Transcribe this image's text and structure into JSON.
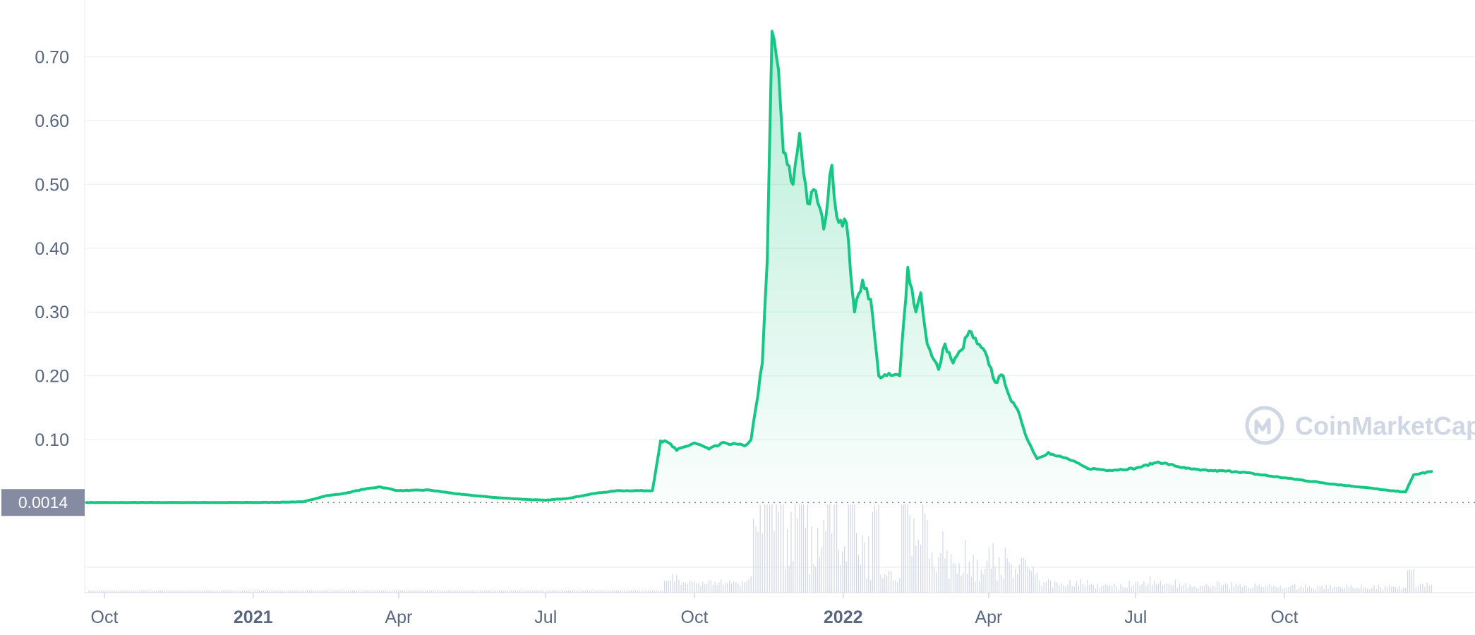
{
  "chart_data": {
    "type": "area",
    "title": "",
    "xlabel": "",
    "ylabel": "",
    "ylim": [
      0,
      0.78
    ],
    "xlim": [
      "2020-09-20",
      "2022-12-31"
    ],
    "y_ticks": [
      "0.70",
      "0.60",
      "0.50",
      "0.40",
      "0.30",
      "0.20",
      "0.10"
    ],
    "y_tick_values": [
      0.7,
      0.6,
      0.5,
      0.4,
      0.3,
      0.2,
      0.1
    ],
    "x_ticks": [
      {
        "label": "Oct",
        "date": "2020-10-01",
        "bold": false
      },
      {
        "label": "2021",
        "date": "2021-01-01",
        "bold": true
      },
      {
        "label": "Apr",
        "date": "2021-04-01",
        "bold": false
      },
      {
        "label": "Jul",
        "date": "2021-07-01",
        "bold": false
      },
      {
        "label": "Oct",
        "date": "2021-10-01",
        "bold": false
      },
      {
        "label": "2022",
        "date": "2022-01-01",
        "bold": true
      },
      {
        "label": "Apr",
        "date": "2022-04-01",
        "bold": false
      },
      {
        "label": "Jul",
        "date": "2022-07-01",
        "bold": false
      },
      {
        "label": "Oct",
        "date": "2022-10-01",
        "bold": false
      }
    ],
    "current_price_label": "0.0014",
    "current_price": 0.0014,
    "grid": true,
    "line_color": "#16c784",
    "series": [
      {
        "x": [
          "2020-09-20",
          "2020-10-15",
          "2020-11-15",
          "2020-12-15",
          "2021-01-10",
          "2021-02-01",
          "2021-02-15",
          "2021-02-25",
          "2021-03-10",
          "2021-03-20",
          "2021-04-01",
          "2021-04-20",
          "2021-05-10",
          "2021-06-01",
          "2021-06-20",
          "2021-07-01",
          "2021-07-15",
          "2021-08-01",
          "2021-08-15",
          "2021-09-05",
          "2021-09-10",
          "2021-09-15",
          "2021-09-20",
          "2021-10-01",
          "2021-10-10",
          "2021-10-20",
          "2021-11-01",
          "2021-11-05",
          "2021-11-08",
          "2021-11-12",
          "2021-11-15",
          "2021-11-18",
          "2021-11-22",
          "2021-11-25",
          "2021-12-01",
          "2021-12-05",
          "2021-12-10",
          "2021-12-15",
          "2021-12-20",
          "2021-12-25",
          "2021-12-28",
          "2022-01-03",
          "2022-01-08",
          "2022-01-13",
          "2022-01-18",
          "2022-01-23",
          "2022-01-28",
          "2022-02-05",
          "2022-02-10",
          "2022-02-15",
          "2022-02-18",
          "2022-02-22",
          "2022-02-25",
          "2022-03-01",
          "2022-03-05",
          "2022-03-10",
          "2022-03-15",
          "2022-03-20",
          "2022-03-25",
          "2022-03-31",
          "2022-04-05",
          "2022-04-10",
          "2022-04-15",
          "2022-04-20",
          "2022-04-25",
          "2022-05-01",
          "2022-05-08",
          "2022-05-12",
          "2022-05-20",
          "2022-06-01",
          "2022-06-15",
          "2022-07-01",
          "2022-07-15",
          "2022-08-01",
          "2022-08-10",
          "2022-09-01",
          "2022-10-01",
          "2022-11-01",
          "2022-11-20",
          "2022-12-05",
          "2022-12-15",
          "2022-12-20",
          "2022-12-31"
        ],
        "values": [
          0.0014,
          0.0014,
          0.0014,
          0.0014,
          0.0016,
          0.0025,
          0.012,
          0.015,
          0.022,
          0.026,
          0.02,
          0.021,
          0.014,
          0.009,
          0.006,
          0.005,
          0.008,
          0.016,
          0.02,
          0.02,
          0.098,
          0.095,
          0.083,
          0.095,
          0.085,
          0.095,
          0.09,
          0.1,
          0.15,
          0.22,
          0.38,
          0.74,
          0.68,
          0.55,
          0.5,
          0.58,
          0.47,
          0.49,
          0.43,
          0.53,
          0.45,
          0.44,
          0.3,
          0.35,
          0.32,
          0.2,
          0.2,
          0.2,
          0.37,
          0.3,
          0.33,
          0.25,
          0.23,
          0.21,
          0.25,
          0.22,
          0.24,
          0.27,
          0.25,
          0.23,
          0.19,
          0.2,
          0.16,
          0.14,
          0.1,
          0.07,
          0.08,
          0.075,
          0.07,
          0.055,
          0.052,
          0.055,
          0.065,
          0.055,
          0.052,
          0.05,
          0.04,
          0.03,
          0.025,
          0.02,
          0.018,
          0.045,
          0.05
        ]
      }
    ]
  },
  "watermark": {
    "text": "CoinMarketCap"
  }
}
